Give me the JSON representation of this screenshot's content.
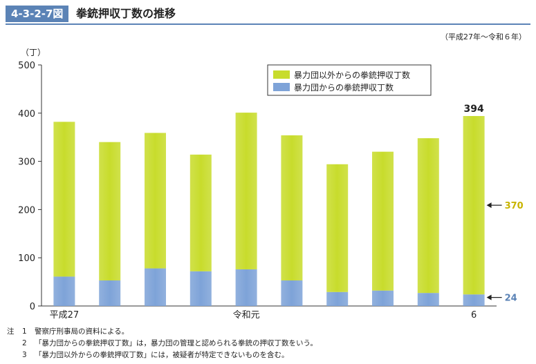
{
  "header": {
    "figure_number": "4-3-2-7図",
    "title": "拳銃押収丁数の推移"
  },
  "period": "（平成27年～令和６年）",
  "chart_data": {
    "type": "bar",
    "stacked": true,
    "y_unit": "（丁）",
    "ylim": [
      0,
      500
    ],
    "yticks": [
      "0",
      "100",
      "200",
      "300",
      "400",
      "500"
    ],
    "categories": [
      "平成27",
      "",
      "",
      "",
      "令和元",
      "",
      "",
      "",
      "",
      "6"
    ],
    "series": [
      {
        "name": "暴力団からの拳銃押収丁数",
        "color": "#7ea3d8",
        "values": [
          61,
          53,
          78,
          72,
          76,
          53,
          29,
          32,
          27,
          24
        ]
      },
      {
        "name": "暴力団以外からの拳銃押収丁数",
        "color": "#c8dc2c",
        "values": [
          321,
          287,
          281,
          242,
          325,
          301,
          265,
          288,
          321,
          370
        ]
      }
    ],
    "totals_label": {
      "index": 9,
      "text": "394"
    },
    "annotations": [
      {
        "series": 1,
        "index": 9,
        "text": "370",
        "color": "#c8b400"
      },
      {
        "series": 0,
        "index": 9,
        "text": "24",
        "color": "#5b83b6"
      }
    ],
    "legend_position": "top-right",
    "grid": false
  },
  "notes": {
    "label": "注",
    "items": [
      {
        "num": "1",
        "text": "警察庁刑事局の資料による。"
      },
      {
        "num": "2",
        "text": "「暴力団からの拳銃押収丁数」は，暴力団の管理と認められる拳銃の押収丁数をいう。"
      },
      {
        "num": "3",
        "text": "「暴力団以外からの拳銃押収丁数」には，被疑者が特定できないものを含む。"
      }
    ]
  }
}
